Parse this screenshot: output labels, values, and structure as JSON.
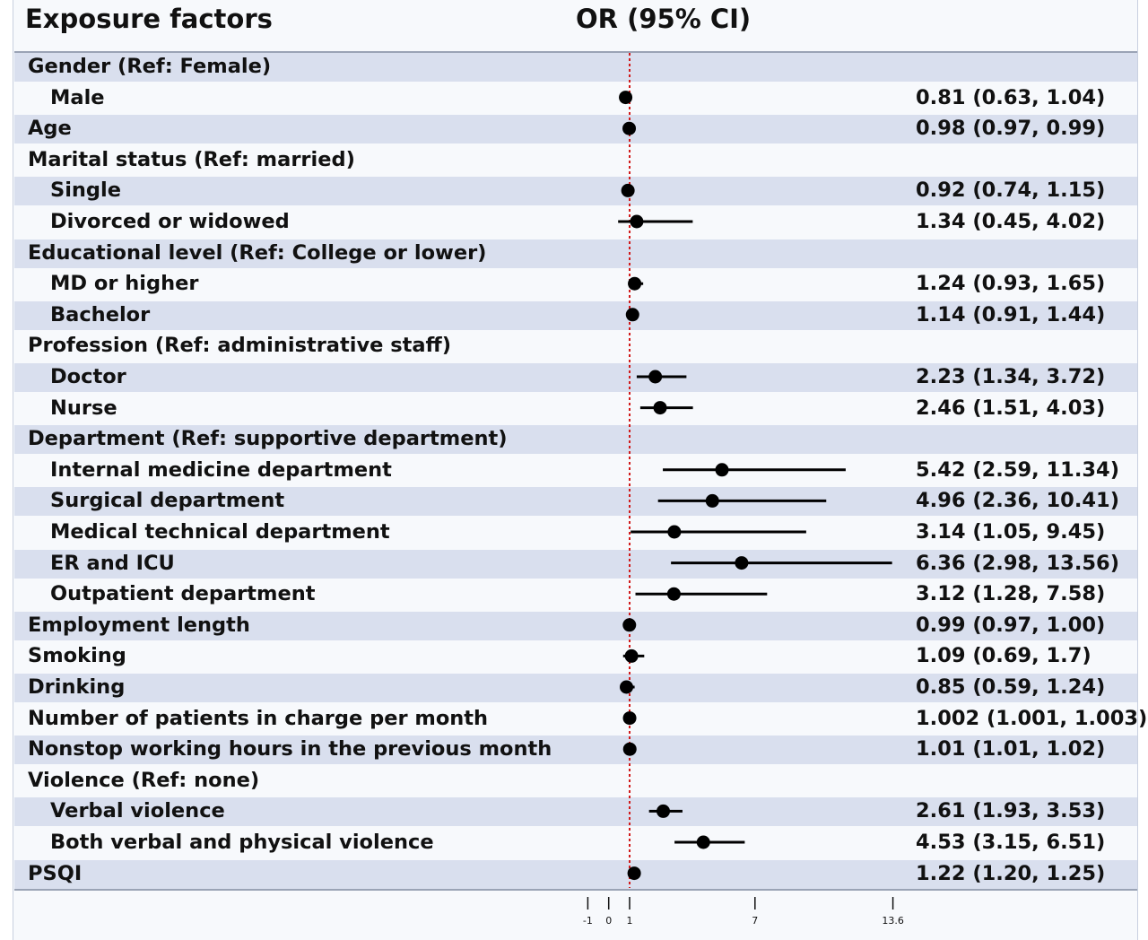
{
  "headers": {
    "factor": "Exposure factors",
    "or": "OR (95% CI)"
  },
  "colors": {
    "band": "#d9dfee",
    "reference_line": "#d11a1a",
    "marker": "#000000"
  },
  "chart_data": {
    "type": "forest",
    "reference_value": 1,
    "x_ticks": [
      -1,
      0,
      1,
      7,
      13.6
    ],
    "x_tick_labels": [
      "-1",
      "0",
      "1",
      "7",
      "13.6"
    ],
    "rows": [
      {
        "label": "Gender (Ref: Female)",
        "indent": 0,
        "band": true
      },
      {
        "label": "Male",
        "indent": 1,
        "band": false,
        "or": 0.81,
        "lo": 0.63,
        "hi": 1.04,
        "text": "0.81 (0.63, 1.04)"
      },
      {
        "label": "Age",
        "indent": 0,
        "band": true,
        "or": 0.98,
        "lo": 0.97,
        "hi": 0.99,
        "text": "0.98 (0.97, 0.99)"
      },
      {
        "label": "Marital status (Ref: married)",
        "indent": 0,
        "band": false
      },
      {
        "label": "Single",
        "indent": 1,
        "band": true,
        "or": 0.92,
        "lo": 0.74,
        "hi": 1.15,
        "text": "0.92 (0.74, 1.15)"
      },
      {
        "label": "Divorced or widowed",
        "indent": 1,
        "band": false,
        "or": 1.34,
        "lo": 0.45,
        "hi": 4.02,
        "text": "1.34 (0.45, 4.02)"
      },
      {
        "label": "Educational level (Ref: College or lower)",
        "indent": 0,
        "band": true
      },
      {
        "label": "MD or higher",
        "indent": 1,
        "band": false,
        "or": 1.24,
        "lo": 0.93,
        "hi": 1.65,
        "text": "1.24 (0.93, 1.65)"
      },
      {
        "label": "Bachelor",
        "indent": 1,
        "band": true,
        "or": 1.14,
        "lo": 0.91,
        "hi": 1.44,
        "text": "1.14 (0.91, 1.44)"
      },
      {
        "label": "Profession (Ref: administrative staff)",
        "indent": 0,
        "band": false
      },
      {
        "label": "Doctor",
        "indent": 1,
        "band": true,
        "or": 2.23,
        "lo": 1.34,
        "hi": 3.72,
        "text": "2.23 (1.34, 3.72)"
      },
      {
        "label": "Nurse",
        "indent": 1,
        "band": false,
        "or": 2.46,
        "lo": 1.51,
        "hi": 4.03,
        "text": "2.46 (1.51, 4.03)"
      },
      {
        "label": "Department (Ref: supportive department)",
        "indent": 0,
        "band": true
      },
      {
        "label": "Internal medicine department",
        "indent": 1,
        "band": false,
        "or": 5.42,
        "lo": 2.59,
        "hi": 11.34,
        "text": "5.42 (2.59, 11.34)"
      },
      {
        "label": "Surgical department",
        "indent": 1,
        "band": true,
        "or": 4.96,
        "lo": 2.36,
        "hi": 10.41,
        "text": "4.96 (2.36, 10.41)"
      },
      {
        "label": "Medical technical department",
        "indent": 1,
        "band": false,
        "or": 3.14,
        "lo": 1.05,
        "hi": 9.45,
        "text": "3.14 (1.05, 9.45)"
      },
      {
        "label": "ER and ICU",
        "indent": 1,
        "band": true,
        "or": 6.36,
        "lo": 2.98,
        "hi": 13.56,
        "text": "6.36 (2.98, 13.56)"
      },
      {
        "label": "Outpatient department",
        "indent": 1,
        "band": false,
        "or": 3.12,
        "lo": 1.28,
        "hi": 7.58,
        "text": "3.12 (1.28, 7.58)"
      },
      {
        "label": "Employment length",
        "indent": 0,
        "band": true,
        "or": 0.99,
        "lo": 0.97,
        "hi": 1.0,
        "text": "0.99 (0.97, 1.00)"
      },
      {
        "label": "Smoking",
        "indent": 0,
        "band": false,
        "or": 1.09,
        "lo": 0.69,
        "hi": 1.7,
        "text": "1.09 (0.69, 1.7)"
      },
      {
        "label": "Drinking",
        "indent": 0,
        "band": true,
        "or": 0.85,
        "lo": 0.59,
        "hi": 1.24,
        "text": "0.85 (0.59, 1.24)"
      },
      {
        "label": "Number of patients in charge per month",
        "indent": 0,
        "band": false,
        "or": 1.002,
        "lo": 1.001,
        "hi": 1.003,
        "text": "1.002 (1.001, 1.003)"
      },
      {
        "label": "Nonstop working hours in the previous month",
        "indent": 0,
        "band": true,
        "or": 1.01,
        "lo": 1.01,
        "hi": 1.02,
        "text": "1.01 (1.01, 1.02)"
      },
      {
        "label": "Violence (Ref: none)",
        "indent": 0,
        "band": false
      },
      {
        "label": "Verbal violence",
        "indent": 1,
        "band": true,
        "or": 2.61,
        "lo": 1.93,
        "hi": 3.53,
        "text": "2.61 (1.93, 3.53)"
      },
      {
        "label": "Both verbal and physical violence",
        "indent": 1,
        "band": false,
        "or": 4.53,
        "lo": 3.15,
        "hi": 6.51,
        "text": "4.53 (3.15, 6.51)"
      },
      {
        "label": "PSQI",
        "indent": 0,
        "band": true,
        "or": 1.22,
        "lo": 1.2,
        "hi": 1.25,
        "text": "1.22 (1.20, 1.25)"
      }
    ]
  }
}
